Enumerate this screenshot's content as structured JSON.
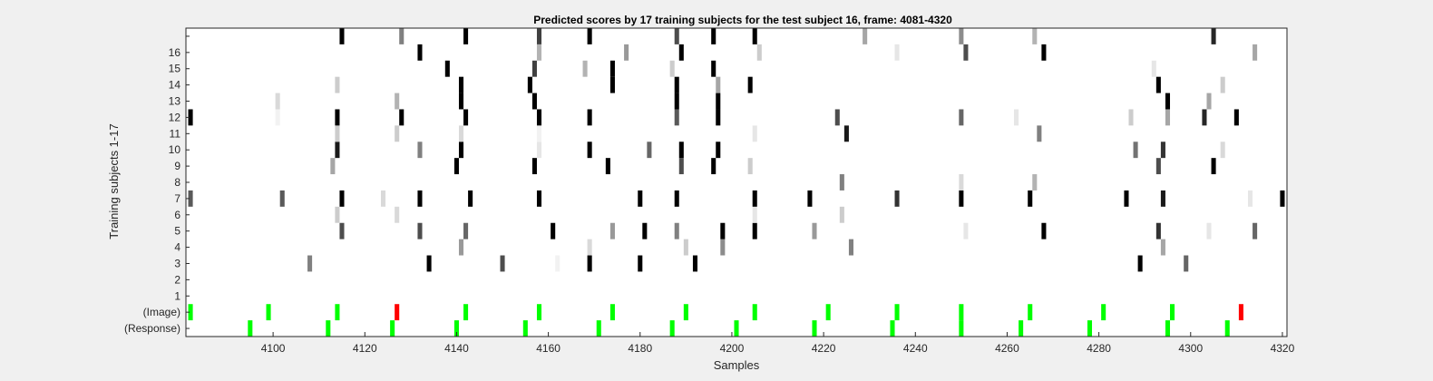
{
  "chart_data": {
    "type": "heatmap",
    "title": "Predicted scores by 17 training subjects for the test subject 16, frame: 4081-4320",
    "xlabel": "Samples",
    "ylabel": "Training subjects 1-17",
    "xlim": [
      4081,
      4320
    ],
    "x_ticks": [
      4100,
      4120,
      4140,
      4160,
      4180,
      4200,
      4220,
      4240,
      4260,
      4280,
      4300,
      4320
    ],
    "row_labels_bottom_to_top": [
      "(Response)",
      "(Image)",
      "1",
      "2",
      "3",
      "4",
      "5",
      "6",
      "7",
      "8",
      "9",
      "10",
      "11",
      "12",
      "13",
      "14",
      "15",
      "16",
      ""
    ],
    "grid": false,
    "colors": {
      "green": "#00ff00",
      "red": "#ff0000",
      "high_score": "#000000",
      "low_score": "#ffffff"
    },
    "cells": {
      "response": {
        "x": [
          4095,
          4112,
          4126,
          4140,
          4155,
          4171,
          4187,
          4201,
          4218,
          4235,
          4250,
          4263,
          4278,
          4295,
          4308
        ],
        "color": "green"
      },
      "image": {
        "x": [
          4082,
          4099,
          4114,
          4127,
          4142,
          4158,
          4174,
          4190,
          4205,
          4221,
          4236,
          4250,
          4265,
          4281,
          4296,
          4311
        ],
        "color": [
          "green",
          "green",
          "green",
          "red",
          "green",
          "green",
          "green",
          "green",
          "green",
          "green",
          "green",
          "green",
          "green",
          "green",
          "green",
          "red"
        ]
      },
      "subjects": [
        {
          "row": 3,
          "x": [
            4108,
            4134,
            4150,
            4162,
            4169,
            4180,
            4192,
            4289,
            4299
          ],
          "v": [
            0.5,
            1,
            0.7,
            0.05,
            1,
            1,
            1,
            1,
            0.6
          ]
        },
        {
          "row": 4,
          "x": [
            4141,
            4169,
            4190,
            4198,
            4226,
            4294
          ],
          "v": [
            0.4,
            0.15,
            0.2,
            0.45,
            0.5,
            0.35
          ]
        },
        {
          "row": 5,
          "x": [
            4115,
            4132,
            4142,
            4161,
            4174,
            4181,
            4188,
            4198,
            4205,
            4218,
            4251,
            4268,
            4293,
            4304,
            4314
          ],
          "v": [
            0.7,
            0.7,
            0.6,
            1,
            0.4,
            1,
            0.5,
            1,
            1,
            0.4,
            0.1,
            1,
            0.8,
            0.1,
            0.6
          ]
        },
        {
          "row": 6,
          "x": [
            4114,
            4127,
            4205,
            4224
          ],
          "v": [
            0.2,
            0.15,
            0.1,
            0.2
          ]
        },
        {
          "row": 7,
          "x": [
            4082,
            4102,
            4115,
            4124,
            4132,
            4143,
            4158,
            4180,
            4188,
            4205,
            4217,
            4236,
            4250,
            4265,
            4286,
            4294,
            4313,
            4320
          ],
          "v": [
            0.65,
            0.65,
            1,
            0.15,
            1,
            1,
            1,
            1,
            1,
            1,
            1,
            0.8,
            1,
            1,
            1,
            0.9,
            0.1,
            1
          ]
        },
        {
          "row": 8,
          "x": [
            4224,
            4250,
            4266
          ],
          "v": [
            0.5,
            0.15,
            0.3
          ]
        },
        {
          "row": 9,
          "x": [
            4113,
            4140,
            4157,
            4173,
            4189,
            4196,
            4204,
            4293,
            4305
          ],
          "v": [
            0.35,
            1,
            1,
            1,
            0.7,
            1,
            0.2,
            0.7,
            1
          ]
        },
        {
          "row": 10,
          "x": [
            4114,
            4132,
            4141,
            4158,
            4169,
            4182,
            4189,
            4197,
            4288,
            4294,
            4307
          ],
          "v": [
            0.9,
            0.5,
            1,
            0.1,
            1,
            0.6,
            1,
            1,
            0.55,
            0.8,
            0.15
          ]
        },
        {
          "row": 11,
          "x": [
            4114,
            4127,
            4141,
            4158,
            4205,
            4225,
            4267
          ],
          "v": [
            0.2,
            0.2,
            0.15,
            0.05,
            0.1,
            0.9,
            0.5
          ]
        },
        {
          "row": 12,
          "x": [
            4082,
            4101,
            4114,
            4128,
            4142,
            4158,
            4169,
            4188,
            4197,
            4223,
            4250,
            4262,
            4287,
            4295,
            4303,
            4310
          ],
          "v": [
            1,
            0.05,
            1,
            1,
            1,
            1,
            1,
            0.65,
            1,
            0.7,
            0.6,
            0.1,
            0.2,
            0.35,
            0.85,
            1
          ]
        },
        {
          "row": 13,
          "x": [
            4101,
            4127,
            4141,
            4157,
            4188,
            4197,
            4295,
            4304
          ],
          "v": [
            0.15,
            0.3,
            1,
            1,
            1,
            1,
            1,
            0.35
          ]
        },
        {
          "row": 14,
          "x": [
            4114,
            4141,
            4156,
            4174,
            4188,
            4197,
            4204,
            4293,
            4307
          ],
          "v": [
            0.2,
            1,
            1,
            1,
            1,
            0.35,
            1,
            1,
            0.2
          ]
        },
        {
          "row": 15,
          "x": [
            4138,
            4157,
            4168,
            4174,
            4187,
            4196,
            4292
          ],
          "v": [
            1,
            0.75,
            0.3,
            1,
            0.2,
            1,
            0.1
          ]
        },
        {
          "row": 16,
          "x": [
            4132,
            4158,
            4177,
            4189,
            4206,
            4236,
            4251,
            4268,
            4314
          ],
          "v": [
            1,
            0.3,
            0.4,
            1,
            0.2,
            0.1,
            0.7,
            1,
            0.35
          ]
        },
        {
          "row": 17,
          "x": [
            4115,
            4128,
            4142,
            4158,
            4169,
            4188,
            4196,
            4205,
            4229,
            4250,
            4266,
            4305
          ],
          "v": [
            1,
            0.5,
            1,
            0.75,
            1,
            0.7,
            1,
            1,
            0.35,
            0.45,
            0.3,
            0.85
          ]
        }
      ]
    }
  }
}
